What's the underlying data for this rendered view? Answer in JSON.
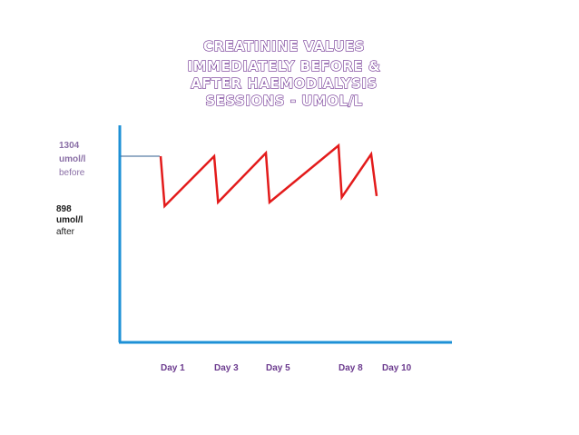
{
  "chart_data": {
    "type": "line",
    "title_lines": [
      "CREATININE VALUES",
      "IMMEDIATELY BEFORE &",
      "AFTER HAEMODIALYSIS",
      "SESSIONS - UMOL/L"
    ],
    "xlabel": "",
    "ylabel": "",
    "x_ticks": [
      {
        "label": "Day 1",
        "day": 1
      },
      {
        "label": "Day 3",
        "day": 3
      },
      {
        "label": "Day 5",
        "day": 5
      },
      {
        "label": "Day 8",
        "day": 8
      },
      {
        "label": "Day 10",
        "day": 10
      }
    ],
    "annotations": {
      "before": {
        "value": "1304",
        "unit": "umol/l",
        "word": "before",
        "y": 1304
      },
      "after": {
        "value": "898",
        "unit": "umol/l",
        "word": "after",
        "y": 898
      }
    },
    "series": [
      {
        "color": "#e31b1b",
        "points": [
          {
            "x": 1.0,
            "y": 1304
          },
          {
            "x": 1.15,
            "y": 898
          },
          {
            "x": 3.0,
            "y": 1304
          },
          {
            "x": 3.15,
            "y": 930
          },
          {
            "x": 5.0,
            "y": 1330
          },
          {
            "x": 5.15,
            "y": 930
          },
          {
            "x": 8.0,
            "y": 1390
          },
          {
            "x": 8.15,
            "y": 970
          },
          {
            "x": 9.5,
            "y": 1320
          },
          {
            "x": 9.75,
            "y": 980
          }
        ]
      }
    ],
    "axis_color": "#1e90d6",
    "grid": false
  }
}
